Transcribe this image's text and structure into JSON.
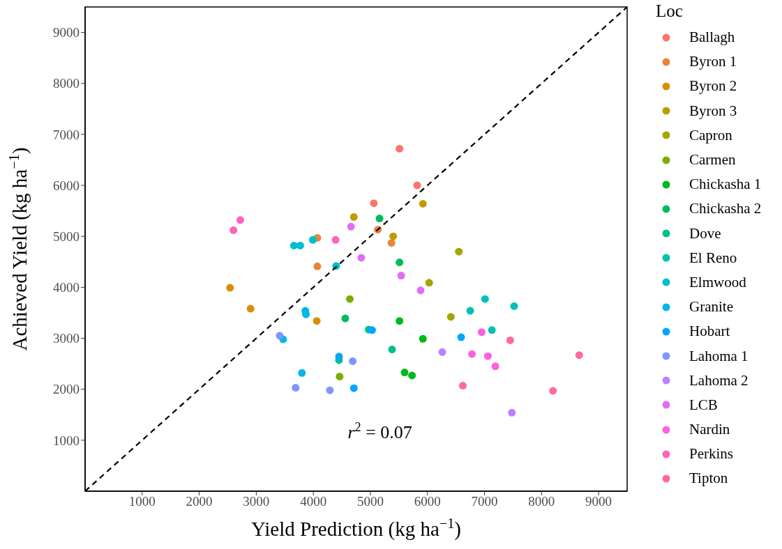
{
  "chart_data": {
    "type": "scatter",
    "xlabel": "Yield Prediction (kg ha$^{−1}$)",
    "ylabel": "Achieved Yield (kg ha$^{−1}$)",
    "legend_title": "Loc",
    "legend": "right",
    "marker": "circle",
    "xlim": [
      0,
      9500
    ],
    "ylim": [
      0,
      9500
    ],
    "xticks": [
      1000,
      2000,
      3000,
      4000,
      5000,
      6000,
      7000,
      8000,
      9000
    ],
    "yticks": [
      1000,
      2000,
      3000,
      4000,
      5000,
      6000,
      7000,
      8000,
      9000
    ],
    "annotations": [
      "r$^{2}$ = 0.07"
    ],
    "series": [
      {
        "name": "Ballagh",
        "color": "#f8766d",
        "x": [
          5510,
          5820,
          5060
        ],
        "values": [
          6720,
          6000,
          5650
        ]
      },
      {
        "name": "Byron 1",
        "color": "#e8853a",
        "x": [
          4070,
          5130,
          5370,
          4070
        ],
        "values": [
          4970,
          5130,
          4870,
          4410
        ]
      },
      {
        "name": "Byron 2",
        "color": "#d89000",
        "x": [
          2540,
          2900,
          4060
        ],
        "values": [
          3990,
          3580,
          3340
        ]
      },
      {
        "name": "Byron 3",
        "color": "#bf9d00",
        "x": [
          5920,
          4710,
          5400
        ],
        "values": [
          5640,
          5380,
          5000
        ]
      },
      {
        "name": "Capron",
        "color": "#a3a500",
        "x": [
          6550,
          6030,
          6410
        ],
        "values": [
          4700,
          4090,
          3420
        ]
      },
      {
        "name": "Carmen",
        "color": "#7cae00",
        "x": [
          4640,
          4460
        ],
        "values": [
          3770,
          2250
        ]
      },
      {
        "name": "Chickasha 1",
        "color": "#00b81b",
        "x": [
          5510,
          5920,
          5600,
          5730
        ],
        "values": [
          3340,
          2990,
          2330,
          2270
        ]
      },
      {
        "name": "Chickasha 2",
        "color": "#00bd5c",
        "x": [
          5160,
          5510,
          4560
        ],
        "values": [
          5350,
          4490,
          3390
        ]
      },
      {
        "name": "Dove",
        "color": "#00c08d",
        "x": [
          4970,
          4450,
          5380
        ],
        "values": [
          3170,
          2570,
          2780
        ]
      },
      {
        "name": "El Reno",
        "color": "#00c1b2",
        "x": [
          7010,
          7520,
          6750,
          7130
        ],
        "values": [
          3770,
          3630,
          3540,
          3160
        ]
      },
      {
        "name": "Elmwood",
        "color": "#00bdd1",
        "x": [
          3990,
          3660,
          3770,
          4400
        ],
        "values": [
          4930,
          4820,
          4820,
          4420
        ]
      },
      {
        "name": "Granite",
        "color": "#00b6eb",
        "x": [
          3860,
          3870,
          3470,
          3800
        ],
        "values": [
          3540,
          3470,
          2980,
          2320
        ]
      },
      {
        "name": "Hobart",
        "color": "#00a5ff",
        "x": [
          5030,
          4450,
          4710,
          6590
        ],
        "values": [
          3160,
          2640,
          2020,
          3020
        ]
      },
      {
        "name": "Lahoma 1",
        "color": "#7f96ff",
        "x": [
          3410,
          4690,
          3690,
          4290
        ],
        "values": [
          3050,
          2550,
          2030,
          1980
        ]
      },
      {
        "name": "Lahoma 2",
        "color": "#bc81ff",
        "x": [
          6260,
          7480
        ],
        "values": [
          2730,
          1540
        ]
      },
      {
        "name": "LCB",
        "color": "#e26ef7",
        "x": [
          4660,
          4840,
          5540,
          5880
        ],
        "values": [
          5190,
          4580,
          4230,
          3940
        ]
      },
      {
        "name": "Nardin",
        "color": "#f863df",
        "x": [
          6950,
          6780,
          7060,
          7190
        ],
        "values": [
          3120,
          2690,
          2650,
          2450
        ]
      },
      {
        "name": "Perkins",
        "color": "#ff62bf",
        "x": [
          2720,
          2600,
          4390
        ],
        "values": [
          5320,
          5120,
          4930
        ]
      },
      {
        "name": "Tipton",
        "color": "#ff6a98",
        "x": [
          7450,
          8660,
          6620,
          8200
        ],
        "values": [
          2960,
          2670,
          2070,
          1970
        ]
      },
      {
        "type": "line",
        "color": "#000000",
        "line_style": "dashed",
        "marker": "none",
        "x": [
          0,
          9500
        ],
        "values": [
          0,
          9500
        ]
      }
    ]
  }
}
